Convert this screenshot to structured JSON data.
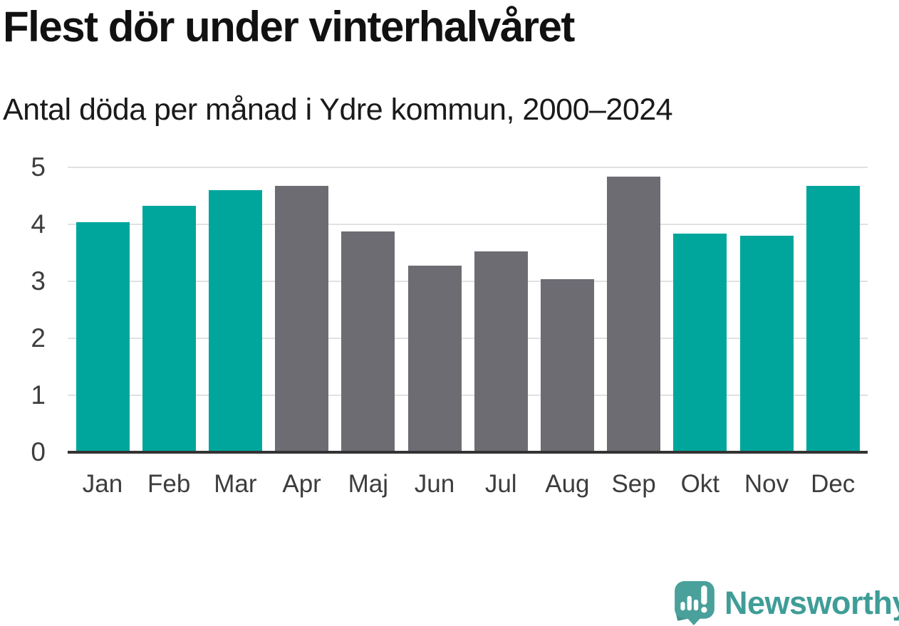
{
  "chart_data": {
    "type": "bar",
    "title": "Flest dör under vinterhalvåret",
    "subtitle": "Antal döda per månad i Ydre kommun, 2000–2024",
    "categories": [
      "Jan",
      "Feb",
      "Mar",
      "Apr",
      "Maj",
      "Jun",
      "Jul",
      "Aug",
      "Sep",
      "Okt",
      "Nov",
      "Dec"
    ],
    "values": [
      4.04,
      4.32,
      4.6,
      4.68,
      3.88,
      3.28,
      3.52,
      3.04,
      4.84,
      3.84,
      3.8,
      4.68
    ],
    "bar_groups": [
      "winter",
      "winter",
      "winter",
      "summer",
      "summer",
      "summer",
      "summer",
      "summer",
      "summer",
      "winter",
      "winter",
      "winter"
    ],
    "group_colors": {
      "winter": "#00a69c",
      "summer": "#6d6c73"
    },
    "xlabel": "",
    "ylabel": "",
    "ylim": [
      0,
      5
    ],
    "yticks": [
      0,
      1,
      2,
      3,
      4,
      5
    ],
    "grid": true,
    "legend": "none"
  },
  "axes": {
    "tick_color": "#3d3d3d",
    "grid_color": "#e1e1e1",
    "axis_line_color": "#333333"
  },
  "footer": {
    "brand": "Newsworthy",
    "brand_color": "#3f9d97",
    "logo_icon": "newsworthy-speech-bubble-bar-chart-icon"
  }
}
